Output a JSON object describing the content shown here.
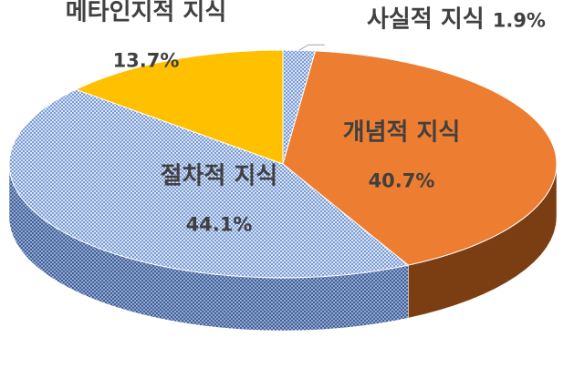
{
  "chart_data": {
    "type": "pie3d",
    "categories": [
      "사실적 지식",
      "개념적 지식",
      "절차적 지식",
      "메타인지적 지식"
    ],
    "values": [
      1.9,
      40.7,
      44.1,
      13.7
    ],
    "value_labels": [
      "1.9%",
      "40.7%",
      "44.1%",
      "13.7%"
    ],
    "colors": [
      "#8fb0e0",
      "#ed7d31",
      "#8fb0e0",
      "#ffc000"
    ]
  }
}
